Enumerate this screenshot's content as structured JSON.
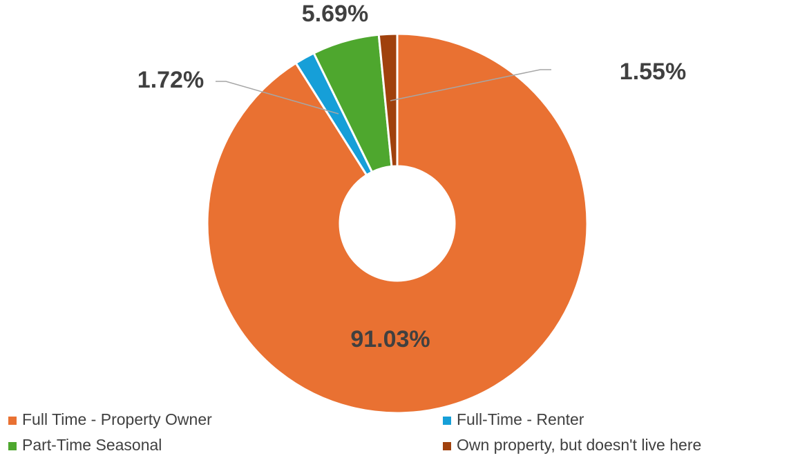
{
  "chart_data": {
    "type": "donut",
    "categories": [
      "Full Time - Property Owner",
      "Full-Time - Renter",
      "Part-Time Seasonal",
      "Own property, but doesn't live here"
    ],
    "values": [
      91.03,
      1.72,
      5.69,
      1.55
    ],
    "value_labels": [
      "91.03%",
      "1.72%",
      "5.69%",
      "1.55%"
    ],
    "colors": [
      "#E97132",
      "#169FD8",
      "#4EA72E",
      "#A0410D"
    ],
    "legend": "bottom"
  }
}
